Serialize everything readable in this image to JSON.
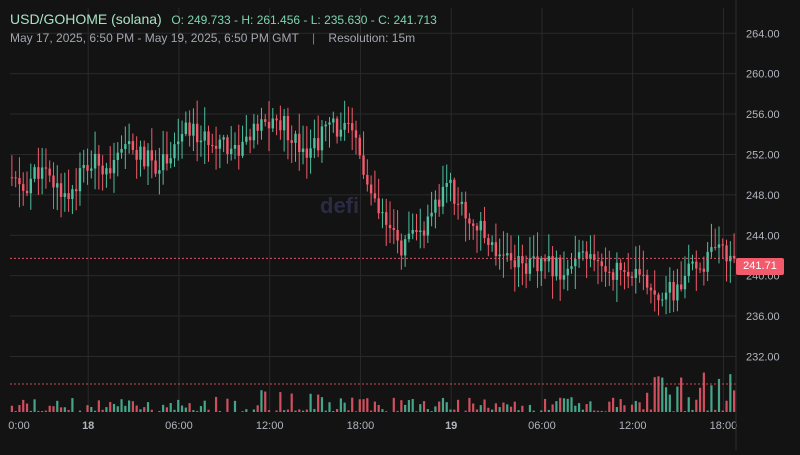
{
  "header": {
    "symbol": "USD/GOHOME (solana)",
    "ohlc_text": "O: 249.733 - H: 261.456 - L: 235.630 - C: 241.713",
    "range_text": "May 17, 2025, 6:50 PM - May 19, 2025, 6:50 PM GMT",
    "separator": "|",
    "resolution_text": "Resolution: 15m",
    "watermark": "defi"
  },
  "colors": {
    "background": "#131313",
    "grid": "#2a2a2a",
    "up": "#4fbf9f",
    "down": "#f15b6c",
    "axis_text": "#b2b5be",
    "last_price_line": "#f15b6c"
  },
  "chart_data": {
    "type": "candlestick",
    "title": "USD/GOHOME (solana)",
    "open": 249.733,
    "high": 261.456,
    "low": 235.63,
    "close": 241.713,
    "resolution": "15m",
    "time_range": [
      "2025-05-17T18:50:00Z",
      "2025-05-19T18:50:00Z"
    ],
    "last_price_label": "241.71",
    "last_price": 241.713,
    "ylim": [
      226.5,
      266.5
    ],
    "y_ticks": [
      "264.00",
      "260.00",
      "256.00",
      "252.00",
      "248.00",
      "244.00",
      "240.00",
      "236.00",
      "232.00"
    ],
    "y_tick_values": [
      264,
      260,
      256,
      252,
      248,
      244,
      240,
      236,
      232
    ],
    "x_ticks": [
      {
        "label": "0:00",
        "hours": 5.17,
        "bold": false
      },
      {
        "label": "18",
        "hours": 5.17,
        "bold": true
      },
      {
        "label": "06:00",
        "hours": 11.17,
        "bold": false
      },
      {
        "label": "12:00",
        "hours": 17.17,
        "bold": false
      },
      {
        "label": "18:00",
        "hours": 23.17,
        "bold": false
      },
      {
        "label": "19",
        "hours": 29.17,
        "bold": true
      },
      {
        "label": "06:00",
        "hours": 35.17,
        "bold": false
      },
      {
        "label": "12:00",
        "hours": 41.17,
        "bold": false
      },
      {
        "label": "18:00",
        "hours": 47.17,
        "bold": false
      }
    ],
    "price_path_hours": [
      0,
      1,
      2,
      3,
      4,
      5,
      6,
      7,
      8,
      9,
      10,
      11,
      12,
      13,
      14,
      15,
      16,
      17,
      18,
      19,
      20,
      21,
      22,
      23,
      24,
      25,
      26,
      27,
      28,
      29,
      30,
      31,
      32,
      33,
      34,
      35,
      36,
      37,
      38,
      39,
      40,
      41,
      42,
      43,
      44,
      45,
      46,
      47,
      48
    ],
    "price_path": [
      249.7,
      248.5,
      250.5,
      249.0,
      248.0,
      250.5,
      251.2,
      250.8,
      252.8,
      251.5,
      251.0,
      253.0,
      254.5,
      253.2,
      253.8,
      252.4,
      253.7,
      255.0,
      255.2,
      253.6,
      252.4,
      254.5,
      254.8,
      253.3,
      247.5,
      244.8,
      242.8,
      243.8,
      245.5,
      249.5,
      246.5,
      244.8,
      243.0,
      242.2,
      241.2,
      240.8,
      241.0,
      240.4,
      241.8,
      241.0,
      240.6,
      240.4,
      239.2,
      238.5,
      238.2,
      240.2,
      241.3,
      242.3,
      241.7
    ],
    "volume_path": [
      1,
      1,
      1,
      1,
      1,
      1,
      1,
      1,
      1,
      1,
      1,
      1,
      1,
      1,
      1.6,
      1.6,
      1.6,
      1.6,
      1.6,
      1.6,
      1.6,
      1.6,
      1.6,
      1.6,
      1.5,
      1.2,
      1.1,
      1.1,
      1.2,
      1.2,
      1.1,
      1.0,
      1.0,
      1.0,
      1.0,
      1.0,
      1.0,
      1.1,
      1.1,
      1.1,
      1.1,
      1.1,
      1.6,
      2.9,
      2.9,
      2.9,
      2.9,
      2.8,
      2.7
    ]
  }
}
